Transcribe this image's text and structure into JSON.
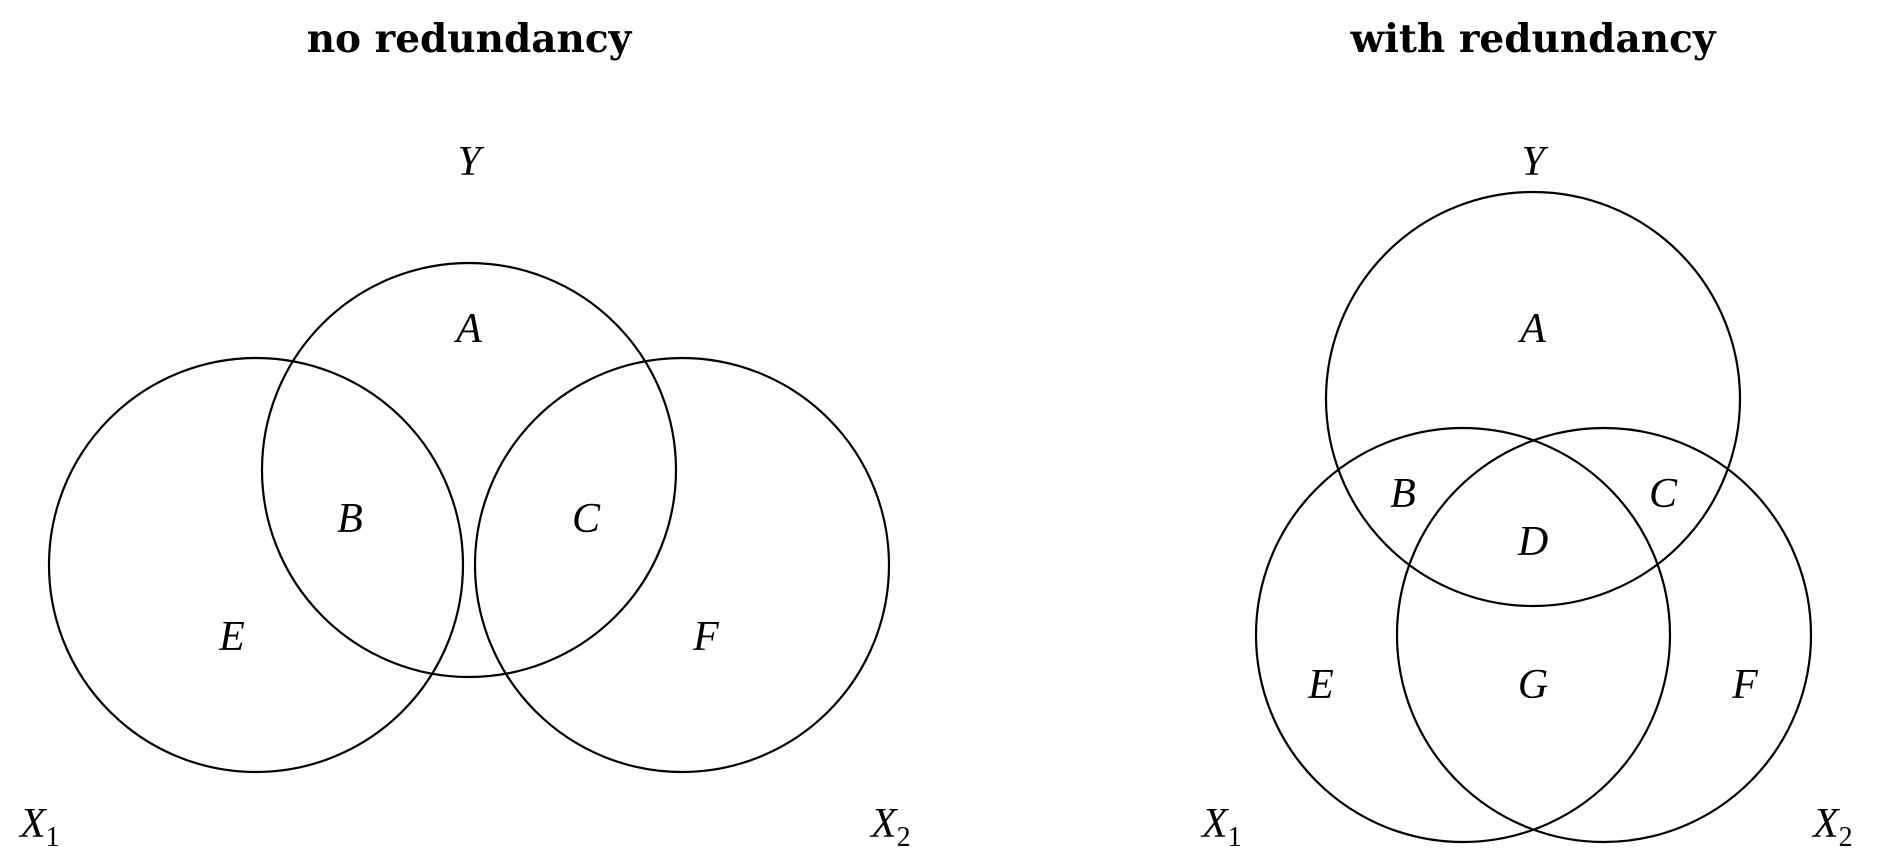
{
  "panels": {
    "left": {
      "title": "no redundancy",
      "sets": {
        "y": {
          "name": "Y",
          "subscript": ""
        },
        "x1": {
          "name": "X",
          "subscript": "1"
        },
        "x2": {
          "name": "X",
          "subscript": "2"
        }
      },
      "regions": {
        "a": "A",
        "b": "B",
        "c": "C",
        "e": "E",
        "f": "F"
      }
    },
    "right": {
      "title": "with redundancy",
      "sets": {
        "y": {
          "name": "Y",
          "subscript": ""
        },
        "x1": {
          "name": "X",
          "subscript": "1"
        },
        "x2": {
          "name": "X",
          "subscript": "2"
        }
      },
      "regions": {
        "a": "A",
        "b": "B",
        "c": "C",
        "d": "D",
        "e": "E",
        "f": "F",
        "g": "G"
      }
    }
  },
  "colors": {
    "stroke": "#000000",
    "background": "#ffffff"
  }
}
